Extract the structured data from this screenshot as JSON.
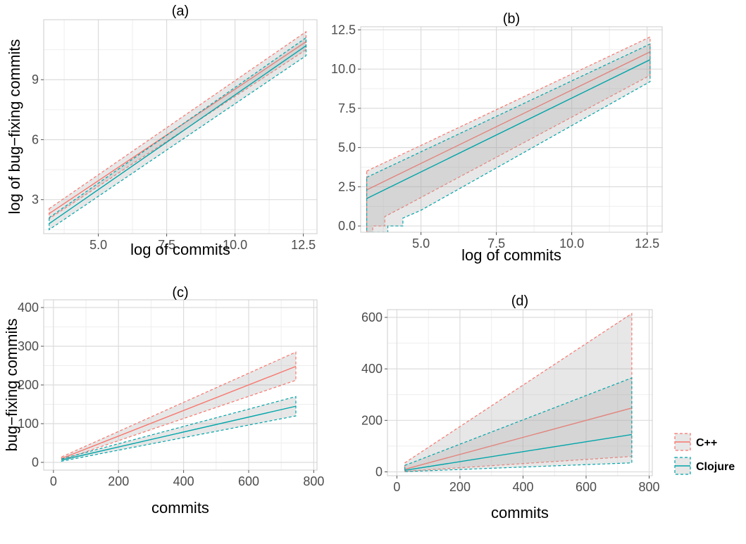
{
  "colors": {
    "cpp": "#F8766D",
    "clojure": "#00A5AA",
    "grid_major": "#dcdcdc",
    "grid_minor": "#eeeeee",
    "panel_border": "#cccccc",
    "ribbon_fill": "#a8a8a8"
  },
  "legend": {
    "position": "right",
    "items": [
      {
        "label": "C++",
        "color": "#F8766D"
      },
      {
        "label": "Clojure",
        "color": "#00A5AA"
      }
    ]
  },
  "chart_data": [
    {
      "type": "line",
      "title": "(a)",
      "xlabel": "log of commits",
      "ylabel": "log of bug−fixing commits",
      "xlim": [
        3.0,
        13.0
      ],
      "ylim": [
        1.3,
        12.0
      ],
      "xticks": [
        5.0,
        7.5,
        10.0,
        12.5
      ],
      "xtick_labels": [
        "5.0",
        "7.5",
        "10.0",
        "12.5"
      ],
      "yticks": [
        3,
        6,
        9
      ],
      "ytick_labels": [
        "3",
        "6",
        "9"
      ],
      "grid": true,
      "series": [
        {
          "name": "C++",
          "x": [
            3.2,
            12.6
          ],
          "y": [
            2.3,
            10.9
          ],
          "lower": [
            2.05,
            10.5
          ],
          "upper": [
            2.55,
            11.4
          ]
        },
        {
          "name": "Clojure",
          "x": [
            3.2,
            12.6
          ],
          "y": [
            1.8,
            10.7
          ],
          "lower": [
            1.5,
            10.2
          ],
          "upper": [
            2.1,
            11.1
          ]
        }
      ]
    },
    {
      "type": "line",
      "title": "(b)",
      "xlabel": "log of commits",
      "ylabel": "",
      "xlim": [
        3.0,
        13.0
      ],
      "ylim": [
        -0.4,
        12.7
      ],
      "xticks": [
        5.0,
        7.5,
        10.0,
        12.5
      ],
      "xtick_labels": [
        "5.0",
        "7.5",
        "10.0",
        "12.5"
      ],
      "yticks": [
        0.0,
        2.5,
        5.0,
        7.5,
        10.0,
        12.5
      ],
      "ytick_labels": [
        "0.0",
        "2.5",
        "5.0",
        "7.5",
        "10.0",
        "12.5"
      ],
      "grid": true,
      "series": [
        {
          "name": "C++",
          "x": [
            3.2,
            12.6
          ],
          "y": [
            2.3,
            11.1
          ],
          "lower_poly": [
            [
              3.2,
              -0.4
            ],
            [
              3.4,
              -0.4
            ],
            [
              3.4,
              0.0
            ],
            [
              3.8,
              0.0
            ],
            [
              3.8,
              0.6
            ],
            [
              4.4,
              1.2
            ],
            [
              12.6,
              9.6
            ]
          ],
          "upper": [
            3.5,
            12.05
          ]
        },
        {
          "name": "Clojure",
          "x": [
            3.2,
            12.6
          ],
          "y": [
            1.75,
            10.6
          ],
          "lower_poly": [
            [
              3.2,
              -0.4
            ],
            [
              3.9,
              -0.4
            ],
            [
              3.9,
              0.0
            ],
            [
              4.4,
              0.0
            ],
            [
              4.4,
              0.5
            ],
            [
              5.0,
              1.0
            ],
            [
              12.6,
              9.2
            ]
          ],
          "upper": [
            3.1,
            11.6
          ]
        }
      ]
    },
    {
      "type": "line",
      "title": "(c)",
      "xlabel": "commits",
      "ylabel": "bug−fixing commits",
      "xlim": [
        -30,
        810
      ],
      "ylim": [
        -20,
        420
      ],
      "xticks": [
        0,
        200,
        400,
        600,
        800
      ],
      "xtick_labels": [
        "0",
        "200",
        "400",
        "600",
        "800"
      ],
      "yticks": [
        0,
        100,
        200,
        300,
        400
      ],
      "ytick_labels": [
        "0",
        "100",
        "200",
        "300",
        "400"
      ],
      "grid": true,
      "series": [
        {
          "name": "C++",
          "x": [
            25,
            745
          ],
          "y": [
            10,
            248
          ],
          "lower": [
            6,
            212
          ],
          "upper": [
            14,
            285
          ]
        },
        {
          "name": "Clojure",
          "x": [
            25,
            745
          ],
          "y": [
            6,
            145
          ],
          "lower": [
            3,
            120
          ],
          "upper": [
            9,
            170
          ]
        }
      ]
    },
    {
      "type": "line",
      "title": "(d)",
      "xlabel": "commits",
      "ylabel": "",
      "xlim": [
        -30,
        810
      ],
      "ylim": [
        -15,
        630
      ],
      "xticks": [
        0,
        200,
        400,
        600,
        800
      ],
      "xtick_labels": [
        "0",
        "200",
        "400",
        "600",
        "800"
      ],
      "yticks": [
        0,
        200,
        400,
        600
      ],
      "ytick_labels": [
        "0",
        "200",
        "400",
        "600"
      ],
      "grid": true,
      "series": [
        {
          "name": "C++",
          "x": [
            25,
            745
          ],
          "y": [
            10,
            248
          ],
          "lower": [
            2,
            60
          ],
          "upper": [
            35,
            615
          ]
        },
        {
          "name": "Clojure",
          "x": [
            25,
            745
          ],
          "y": [
            6,
            145
          ],
          "lower": [
            1,
            35
          ],
          "upper": [
            25,
            365
          ]
        }
      ]
    }
  ]
}
